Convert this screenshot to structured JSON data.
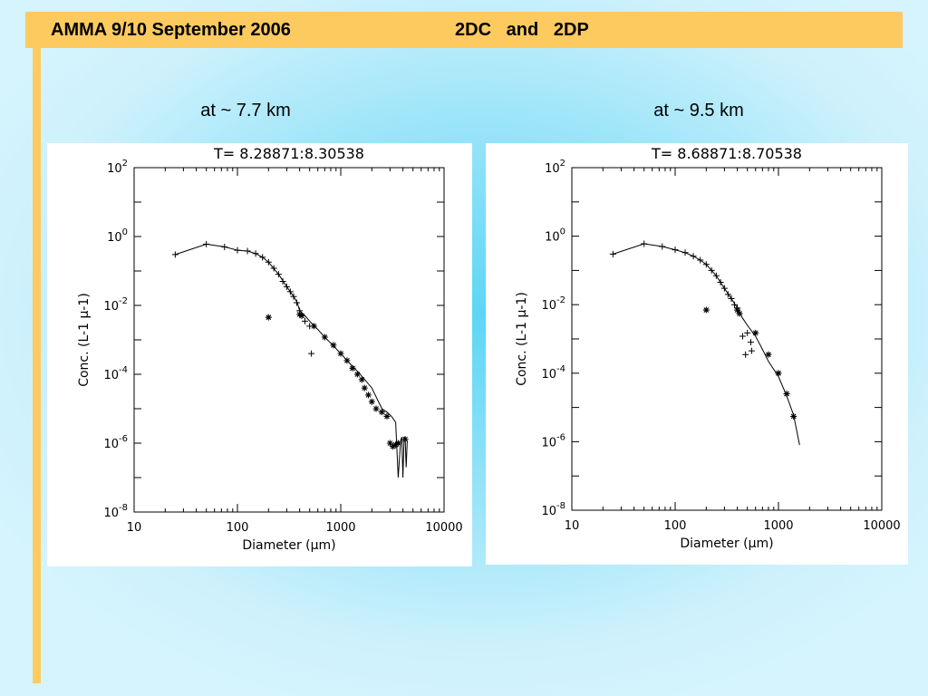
{
  "slide": {
    "title_left": "AMMA 9/10 September 2006",
    "title_right": "2DC   and   2DP",
    "subtitle_left": "at ~ 7.7 km",
    "subtitle_right": "at ~ 9.5 km"
  },
  "chart_data": [
    {
      "type": "scatter",
      "title": "T=  8.28871:8.30538",
      "xlabel": "Diameter (μm)",
      "ylabel": "Conc. (L-1 μ-1)",
      "xscale": "log",
      "yscale": "log",
      "xlim": [
        10,
        10000
      ],
      "ylim": [
        1e-08,
        100
      ],
      "x_ticks": [
        "10",
        "100",
        "1000",
        "10000"
      ],
      "y_tick_exponents": [
        "2",
        "0",
        "-2",
        "-4",
        "-6",
        "-8"
      ],
      "grid": false,
      "series": [
        {
          "marker": "line",
          "x": [
            25,
            50,
            75,
            100,
            125,
            150,
            175,
            200,
            250,
            300,
            350,
            380,
            400,
            450,
            500,
            600,
            700,
            800,
            1000,
            1200,
            1500,
            2000,
            2500,
            2800,
            3100,
            3400,
            3600,
            3800,
            3900,
            4000,
            4100,
            4200,
            4300,
            4400
          ],
          "y": [
            0.3,
            0.6,
            0.5,
            0.4,
            0.38,
            0.32,
            0.25,
            0.18,
            0.08,
            0.035,
            0.018,
            0.012,
            0.007,
            0.005,
            0.0035,
            0.002,
            0.0012,
            0.0008,
            0.0004,
            0.00022,
            0.00011,
            4e-05,
            1e-05,
            8e-06,
            6e-06,
            4e-06,
            1e-07,
            1.2e-06,
            1.5e-06,
            1e-07,
            1.5e-06,
            1.3e-06,
            2e-07,
            1.2e-06
          ]
        },
        {
          "marker": "plus",
          "x": [
            25,
            50,
            75,
            100,
            125,
            150,
            175,
            200,
            225,
            250,
            275,
            300,
            325,
            350,
            375,
            400,
            450,
            500,
            520
          ],
          "y": [
            0.3,
            0.6,
            0.5,
            0.4,
            0.38,
            0.32,
            0.25,
            0.18,
            0.12,
            0.08,
            0.05,
            0.035,
            0.025,
            0.018,
            0.012,
            0.007,
            0.0035,
            0.0025,
            0.0004
          ]
        },
        {
          "marker": "asterisk",
          "x": [
            200,
            400,
            420,
            550,
            700,
            850,
            1000,
            1150,
            1300,
            1450,
            1600,
            1700,
            1850,
            2000,
            2200,
            2500,
            2800,
            3000,
            3200,
            3400,
            3600,
            4200
          ],
          "y": [
            0.0045,
            0.0055,
            0.005,
            0.0025,
            0.0012,
            0.0007,
            0.0004,
            0.00025,
            0.00015,
            0.0001,
            7e-05,
            4e-05,
            2.5e-05,
            1.6e-05,
            1e-05,
            8e-06,
            6e-06,
            1e-06,
            8e-07,
            9e-07,
            1e-06,
            1.3e-06
          ]
        }
      ]
    },
    {
      "type": "scatter",
      "title": "T=  8.68871:8.70538",
      "xlabel": "Diameter (μm)",
      "ylabel": "Conc. (L-1 μ-1)",
      "xscale": "log",
      "yscale": "log",
      "xlim": [
        10,
        10000
      ],
      "ylim": [
        1e-08,
        100
      ],
      "x_ticks": [
        "10",
        "100",
        "1000",
        "10000"
      ],
      "y_tick_exponents": [
        "2",
        "0",
        "-2",
        "-4",
        "-6",
        "-8"
      ],
      "grid": false,
      "series": [
        {
          "marker": "line",
          "x": [
            25,
            50,
            75,
            100,
            125,
            150,
            175,
            200,
            250,
            300,
            350,
            400,
            450,
            500,
            600,
            700,
            800,
            1000,
            1200,
            1400,
            1600
          ],
          "y": [
            0.3,
            0.6,
            0.5,
            0.4,
            0.33,
            0.26,
            0.2,
            0.15,
            0.07,
            0.03,
            0.015,
            0.008,
            0.004,
            0.0025,
            0.0012,
            0.0005,
            0.00022,
            8e-05,
            2.2e-05,
            6e-06,
            8e-07
          ]
        },
        {
          "marker": "plus",
          "x": [
            25,
            50,
            75,
            100,
            125,
            150,
            175,
            200,
            225,
            250,
            275,
            300,
            325,
            350,
            375,
            400,
            450,
            500,
            480,
            540,
            550
          ],
          "y": [
            0.3,
            0.6,
            0.5,
            0.4,
            0.33,
            0.26,
            0.2,
            0.15,
            0.1,
            0.07,
            0.045,
            0.03,
            0.02,
            0.015,
            0.01,
            0.008,
            0.0012,
            0.0015,
            0.00035,
            0.0008,
            0.00045
          ]
        },
        {
          "marker": "asterisk",
          "x": [
            200,
            400,
            420,
            600,
            800,
            1000,
            1200,
            1400
          ],
          "y": [
            0.007,
            0.007,
            0.0055,
            0.0015,
            0.00035,
            0.0001,
            2.5e-05,
            5.5e-06
          ]
        }
      ]
    }
  ]
}
